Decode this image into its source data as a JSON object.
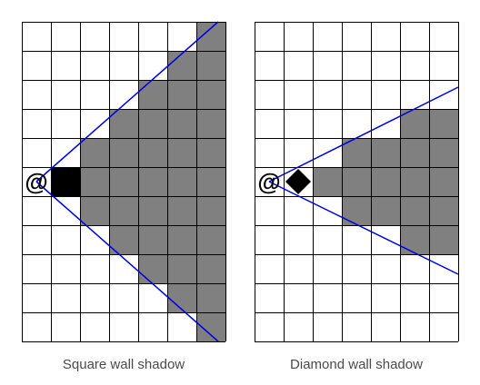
{
  "panels": [
    {
      "caption": "Square wall shadow",
      "observer_symbol": "@",
      "wall_shape": "square",
      "grid": {
        "cols": 7,
        "rows": 11
      },
      "observer_cell": [
        0,
        5
      ],
      "wall_cell": [
        1,
        5
      ],
      "shadow_cells_by_column": [
        {
          "col": 2,
          "rows": [
            4,
            5,
            6
          ]
        },
        {
          "col": 3,
          "rows": [
            3,
            4,
            5,
            6,
            7
          ]
        },
        {
          "col": 4,
          "rows": [
            2,
            3,
            4,
            5,
            6,
            7,
            8
          ]
        },
        {
          "col": 5,
          "rows": [
            1,
            2,
            3,
            4,
            5,
            6,
            7,
            8,
            9
          ]
        },
        {
          "col": 6,
          "rows": [
            0,
            1,
            2,
            3,
            4,
            5,
            6,
            7,
            8,
            9,
            10
          ]
        }
      ]
    },
    {
      "caption": "Diamond wall shadow",
      "observer_symbol": "@",
      "wall_shape": "diamond",
      "grid": {
        "cols": 7,
        "rows": 11
      },
      "observer_cell": [
        0,
        5
      ],
      "wall_cell": [
        1,
        5
      ],
      "shadow_cells_by_column": [
        {
          "col": 2,
          "rows": [
            5
          ]
        },
        {
          "col": 3,
          "rows": [
            4,
            5,
            6
          ]
        },
        {
          "col": 4,
          "rows": [
            4,
            5,
            6
          ]
        },
        {
          "col": 5,
          "rows": [
            3,
            4,
            5,
            6,
            7
          ]
        },
        {
          "col": 6,
          "rows": [
            3,
            4,
            5,
            6,
            7
          ]
        }
      ]
    }
  ],
  "colors": {
    "shadow": "#808080",
    "wall": "#000000",
    "grid_line": "#000000",
    "ray": "#0000e0",
    "caption": "#4a4a4a"
  }
}
